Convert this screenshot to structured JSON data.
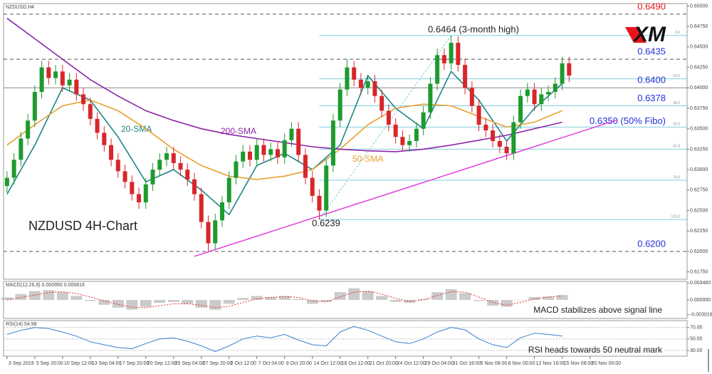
{
  "chart_data": {
    "type": "candlestick",
    "symbol": "NZDUSD,H4",
    "title": "NZDUSD 4H-Chart",
    "logo": "XM",
    "up_color": "#1e9a2e",
    "down_color": "#d8262b",
    "xlim": [
      -0.5,
      98
    ],
    "xticks": [
      {
        "value": 0,
        "label": "3 Sep 2019"
      },
      {
        "value": 4,
        "label": "5 Sep 20:00"
      },
      {
        "value": 8,
        "label": "10 Sep 12:00"
      },
      {
        "value": 12,
        "label": "13 Sep 04:00"
      },
      {
        "value": 16,
        "label": "17 Sep 20:00"
      },
      {
        "value": 20,
        "label": "20 Sep 12:00"
      },
      {
        "value": 24,
        "label": "25 Sep 04:00"
      },
      {
        "value": 28,
        "label": "27 Sep 20:00"
      },
      {
        "value": 32,
        "label": "2 Oct 12:00"
      },
      {
        "value": 36,
        "label": "7 Oct 04:00"
      },
      {
        "value": 40,
        "label": "9 Oct 20:00"
      },
      {
        "value": 44,
        "label": "14 Oct 12:00"
      },
      {
        "value": 48,
        "label": "16 Oct 12:00"
      },
      {
        "value": 52,
        "label": "21 Oct 20:00"
      },
      {
        "value": 56,
        "label": "24 Oct 12:00"
      },
      {
        "value": 60,
        "label": "29 Oct 04:00"
      },
      {
        "value": 64,
        "label": "31 Oct 16:00"
      },
      {
        "value": 68,
        "label": "5 Nov 08:00"
      },
      {
        "value": 72,
        "label": "8 Nov 00:00"
      },
      {
        "value": 76,
        "label": "12 Nov 16:00"
      },
      {
        "value": 80,
        "label": "15 Nov 08:00"
      },
      {
        "value": 84,
        "label": "20 Nov 00:00"
      }
    ],
    "ylim": [
      0.6166,
      0.6503
    ],
    "yticks": [
      {
        "value": 0.6175,
        "label": "0.61750"
      },
      {
        "value": 0.62,
        "label": "0.62000"
      },
      {
        "value": 0.6225,
        "label": "0.62250"
      },
      {
        "value": 0.625,
        "label": "0.62500"
      },
      {
        "value": 0.6275,
        "label": "0.62750"
      },
      {
        "value": 0.63,
        "label": "0.63000"
      },
      {
        "value": 0.6325,
        "label": "0.63250"
      },
      {
        "value": 0.635,
        "label": "0.63500"
      },
      {
        "value": 0.6375,
        "label": "0.63750"
      },
      {
        "value": 0.64,
        "label": "0.64000"
      },
      {
        "value": 0.6425,
        "label": "0.64250"
      },
      {
        "value": 0.645,
        "label": "0.64500"
      },
      {
        "value": 0.6475,
        "label": "0.64750"
      },
      {
        "value": 0.65,
        "label": "0.65000"
      }
    ],
    "ohlc": [
      [
        0.628,
        0.6298,
        0.6272,
        0.629
      ],
      [
        0.629,
        0.632,
        0.6282,
        0.6312
      ],
      [
        0.6312,
        0.6346,
        0.6304,
        0.6338
      ],
      [
        0.6338,
        0.6368,
        0.633,
        0.636
      ],
      [
        0.636,
        0.6403,
        0.6352,
        0.6395
      ],
      [
        0.6395,
        0.6433,
        0.6387,
        0.6425
      ],
      [
        0.6425,
        0.6433,
        0.6404,
        0.6412
      ],
      [
        0.6412,
        0.6428,
        0.6404,
        0.642
      ],
      [
        0.642,
        0.6428,
        0.6395,
        0.6403
      ],
      [
        0.6403,
        0.6418,
        0.6395,
        0.641
      ],
      [
        0.641,
        0.6418,
        0.6384,
        0.6392
      ],
      [
        0.6392,
        0.64,
        0.6372,
        0.638
      ],
      [
        0.638,
        0.6388,
        0.6354,
        0.6362
      ],
      [
        0.6362,
        0.637,
        0.6337,
        0.6345
      ],
      [
        0.6345,
        0.6353,
        0.6322,
        0.633
      ],
      [
        0.633,
        0.6338,
        0.6304,
        0.6312
      ],
      [
        0.6312,
        0.632,
        0.629,
        0.6298
      ],
      [
        0.6298,
        0.6306,
        0.6277,
        0.6285
      ],
      [
        0.6285,
        0.6293,
        0.6262,
        0.627
      ],
      [
        0.627,
        0.6278,
        0.6252,
        0.626
      ],
      [
        0.626,
        0.629,
        0.6252,
        0.6282
      ],
      [
        0.6282,
        0.6308,
        0.6274,
        0.63
      ],
      [
        0.63,
        0.632,
        0.6292,
        0.6312
      ],
      [
        0.6312,
        0.6328,
        0.6304,
        0.632
      ],
      [
        0.632,
        0.6328,
        0.63,
        0.6308
      ],
      [
        0.6308,
        0.6316,
        0.6292,
        0.63
      ],
      [
        0.63,
        0.6308,
        0.628,
        0.6288
      ],
      [
        0.6288,
        0.6296,
        0.6262,
        0.627
      ],
      [
        0.627,
        0.6278,
        0.6228,
        0.6236
      ],
      [
        0.6236,
        0.6244,
        0.62,
        0.621
      ],
      [
        0.621,
        0.6246,
        0.6202,
        0.6238
      ],
      [
        0.6238,
        0.6268,
        0.623,
        0.626
      ],
      [
        0.626,
        0.6298,
        0.6252,
        0.629
      ],
      [
        0.629,
        0.6318,
        0.6282,
        0.631
      ],
      [
        0.631,
        0.633,
        0.6302,
        0.6322
      ],
      [
        0.6322,
        0.633,
        0.6304,
        0.6312
      ],
      [
        0.6312,
        0.6338,
        0.6304,
        0.633
      ],
      [
        0.633,
        0.6338,
        0.631,
        0.6318
      ],
      [
        0.6318,
        0.6333,
        0.631,
        0.6325
      ],
      [
        0.6325,
        0.6333,
        0.6307,
        0.6315
      ],
      [
        0.6315,
        0.6344,
        0.6307,
        0.6336
      ],
      [
        0.6336,
        0.6358,
        0.6328,
        0.635
      ],
      [
        0.635,
        0.6358,
        0.631,
        0.6318
      ],
      [
        0.6318,
        0.6326,
        0.6282,
        0.629
      ],
      [
        0.629,
        0.6298,
        0.626,
        0.6268
      ],
      [
        0.6268,
        0.6276,
        0.6239,
        0.625
      ],
      [
        0.625,
        0.6313,
        0.6242,
        0.6305
      ],
      [
        0.6305,
        0.6368,
        0.6297,
        0.636
      ],
      [
        0.636,
        0.6406,
        0.6352,
        0.6398
      ],
      [
        0.6398,
        0.6435,
        0.639,
        0.6425
      ],
      [
        0.6425,
        0.6433,
        0.6402,
        0.641
      ],
      [
        0.641,
        0.6418,
        0.6392,
        0.64
      ],
      [
        0.64,
        0.6416,
        0.6392,
        0.6408
      ],
      [
        0.6408,
        0.6416,
        0.6382,
        0.639
      ],
      [
        0.639,
        0.6398,
        0.6364,
        0.6372
      ],
      [
        0.6372,
        0.638,
        0.6347,
        0.6355
      ],
      [
        0.6355,
        0.6363,
        0.6332,
        0.634
      ],
      [
        0.634,
        0.6348,
        0.6322,
        0.633
      ],
      [
        0.633,
        0.6343,
        0.6322,
        0.6335
      ],
      [
        0.6335,
        0.6358,
        0.6327,
        0.635
      ],
      [
        0.635,
        0.6378,
        0.6342,
        0.637
      ],
      [
        0.637,
        0.6413,
        0.6362,
        0.6405
      ],
      [
        0.6405,
        0.6448,
        0.6397,
        0.644
      ],
      [
        0.644,
        0.6448,
        0.6422,
        0.643
      ],
      [
        0.643,
        0.6464,
        0.6422,
        0.6455
      ],
      [
        0.6455,
        0.6463,
        0.642,
        0.6428
      ],
      [
        0.6428,
        0.6436,
        0.6392,
        0.64
      ],
      [
        0.64,
        0.6408,
        0.637,
        0.6378
      ],
      [
        0.6378,
        0.6386,
        0.6347,
        0.6355
      ],
      [
        0.6355,
        0.6363,
        0.634,
        0.6348
      ],
      [
        0.6348,
        0.6356,
        0.6327,
        0.6335
      ],
      [
        0.6335,
        0.6343,
        0.632,
        0.6328
      ],
      [
        0.6328,
        0.6336,
        0.6312,
        0.632
      ],
      [
        0.632,
        0.6366,
        0.6312,
        0.6358
      ],
      [
        0.6358,
        0.6398,
        0.635,
        0.639
      ],
      [
        0.639,
        0.6406,
        0.6382,
        0.6398
      ],
      [
        0.6398,
        0.6406,
        0.6372,
        0.638
      ],
      [
        0.638,
        0.64,
        0.6372,
        0.6392
      ],
      [
        0.6392,
        0.6403,
        0.6384,
        0.6395
      ],
      [
        0.6395,
        0.6413,
        0.6387,
        0.6405
      ],
      [
        0.6405,
        0.6438,
        0.6397,
        0.643
      ],
      [
        0.643,
        0.6438,
        0.6407,
        0.6415
      ]
    ],
    "sma_x": [
      0,
      4,
      8,
      12,
      16,
      20,
      24,
      28,
      32,
      36,
      40,
      44,
      48,
      52,
      56,
      60,
      64,
      68,
      72,
      76,
      80
    ],
    "series": [
      {
        "name": "20-SMA",
        "color": "#1f8585",
        "values": [
          0.627,
          0.633,
          0.64,
          0.6385,
          0.634,
          0.6285,
          0.63,
          0.6275,
          0.6245,
          0.6305,
          0.632,
          0.63,
          0.633,
          0.6415,
          0.6375,
          0.635,
          0.642,
          0.6385,
          0.6335,
          0.6375,
          0.6405
        ]
      },
      {
        "name": "50-SMA",
        "color": "#e8a033",
        "values": [
          0.633,
          0.6355,
          0.6378,
          0.6385,
          0.6372,
          0.635,
          0.6325,
          0.6305,
          0.6292,
          0.6288,
          0.6292,
          0.63,
          0.6325,
          0.6355,
          0.6375,
          0.638,
          0.6378,
          0.6365,
          0.6352,
          0.6358,
          0.6372
        ]
      },
      {
        "name": "200-SMA",
        "color": "#8e24aa",
        "values": [
          0.6485,
          0.646,
          0.6435,
          0.641,
          0.639,
          0.6372,
          0.636,
          0.635,
          0.6343,
          0.6338,
          0.6333,
          0.6328,
          0.6325,
          0.6323,
          0.6322,
          0.6325,
          0.633,
          0.6336,
          0.6342,
          0.635,
          0.6358
        ]
      }
    ],
    "trendline": {
      "x": [
        27,
        88
      ],
      "values": [
        0.6194,
        0.6361
      ],
      "color": "#e040e0"
    },
    "fibo": {
      "start_x": 45,
      "end_x": 64,
      "color": "#7fcfdc",
      "levels": [
        {
          "price": 0.6464,
          "label": "0.0"
        },
        {
          "price": 0.6411,
          "label": "23.6"
        },
        {
          "price": 0.6378,
          "label": "38.2"
        },
        {
          "price": 0.6352,
          "label": "50.0"
        },
        {
          "price": 0.6325,
          "label": "61.8"
        },
        {
          "price": 0.6287,
          "label": "78.6"
        },
        {
          "price": 0.6239,
          "label": "100.0"
        }
      ]
    },
    "levels": [
      {
        "value": 0.649,
        "label": "0.6490",
        "color": "#e8141c",
        "style": "dashed"
      },
      {
        "value": 0.6435,
        "label": "0.6435",
        "color": "#2330d8",
        "style": "dashed"
      },
      {
        "value": 0.64,
        "label": "0.6400",
        "color": "#2330d8",
        "style": "solid"
      },
      {
        "value": 0.6378,
        "label": "0.6378",
        "color": "#2330d8",
        "style": "none"
      },
      {
        "value": 0.635,
        "label": "0.6350 (50% Fibo)",
        "color": "#2330d8",
        "style": "none"
      },
      {
        "value": 0.62,
        "label": "0.6200",
        "color": "#2330d8",
        "style": "dashed"
      }
    ],
    "annotations": [
      "0.6464 (3-month high)",
      "0.6239"
    ],
    "macd": {
      "label": "MACD(12,26,9) 0.000950 0.000816",
      "note": "MACD stabilizes above signal line",
      "x": [
        0,
        2,
        4,
        6,
        8,
        10,
        12,
        14,
        16,
        18,
        20,
        22,
        24,
        26,
        28,
        30,
        32,
        34,
        36,
        38,
        40,
        42,
        44,
        46,
        48,
        50,
        52,
        54,
        56,
        58,
        60,
        62,
        64,
        66,
        68,
        70,
        72,
        74,
        76,
        78,
        80
      ],
      "values": [
        0.0005,
        0.0012,
        0.0018,
        0.002,
        0.0016,
        0.0008,
        -0.0002,
        -0.001,
        -0.0016,
        -0.002,
        -0.0014,
        -0.0006,
        -0.0004,
        -0.0008,
        -0.0016,
        -0.002,
        -0.0008,
        0.0004,
        0.0008,
        0.0006,
        0.0008,
        0.0002,
        -0.0008,
        -0.0004,
        0.0016,
        0.0024,
        0.0018,
        0.0008,
        -0.0004,
        -0.0006,
        0.0002,
        0.0016,
        0.0022,
        0.0014,
        -0.0002,
        -0.0012,
        -0.0014,
        0,
        0.0006,
        0.0007,
        0.001
      ],
      "signal": [
        0,
        0.0005,
        0.001,
        0.0015,
        0.0017,
        0.0013,
        0.0006,
        -0.0002,
        -0.0009,
        -0.0015,
        -0.0016,
        -0.0012,
        -0.0008,
        -0.0008,
        -0.0011,
        -0.0016,
        -0.0013,
        -0.0005,
        0.0002,
        0.0005,
        0.0007,
        0.0005,
        -0.0002,
        -0.0004,
        0.0006,
        0.0016,
        0.0018,
        0.0012,
        0.0003,
        -0.0003,
        0,
        0.0009,
        0.0017,
        0.0016,
        0.0006,
        -0.0005,
        -0.0011,
        -0.0005,
        0.0002,
        0.0006,
        0.0008
      ],
      "color": "#b5b5b5",
      "signal_color": "#e03030",
      "ylim": [
        -0.0038,
        0.0038
      ],
      "yticks": [
        0.003483,
        {
          "value": 0,
          "label": "0.000000"
        },
        -0.003016
      ]
    },
    "rsi": {
      "label": "RSI(14) 54.98",
      "note": "RSI heads towards 50 neutral mark",
      "values": [
        58,
        65,
        70,
        68,
        62,
        55,
        45,
        40,
        35,
        33,
        42,
        50,
        52,
        46,
        38,
        28,
        38,
        50,
        55,
        52,
        58,
        48,
        40,
        38,
        62,
        72,
        65,
        55,
        45,
        42,
        50,
        62,
        70,
        66,
        50,
        40,
        35,
        52,
        60,
        58,
        55
      ],
      "color": "#3a7fd0",
      "ylim": [
        20,
        82
      ],
      "yticks": [
        {
          "value": 70,
          "label": "70.00"
        },
        {
          "value": 50,
          "label": "50.00"
        },
        {
          "value": 30,
          "label": "30.00"
        }
      ]
    }
  }
}
